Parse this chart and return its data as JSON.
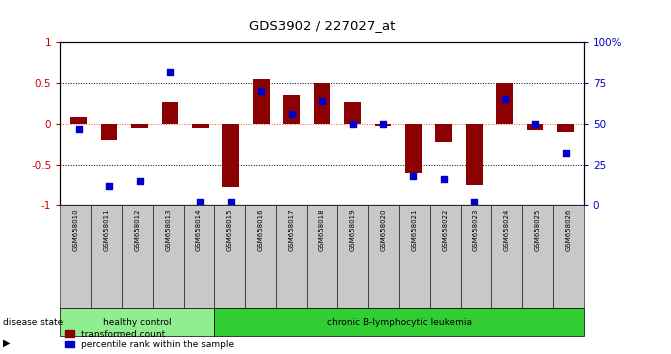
{
  "title": "GDS3902 / 227027_at",
  "samples": [
    "GSM658010",
    "GSM658011",
    "GSM658012",
    "GSM658013",
    "GSM658014",
    "GSM658015",
    "GSM658016",
    "GSM658017",
    "GSM658018",
    "GSM658019",
    "GSM658020",
    "GSM658021",
    "GSM658022",
    "GSM658023",
    "GSM658024",
    "GSM658025",
    "GSM658026"
  ],
  "red_values": [
    0.08,
    -0.2,
    -0.05,
    0.27,
    -0.05,
    -0.78,
    0.55,
    0.35,
    0.5,
    0.27,
    -0.02,
    -0.6,
    -0.22,
    -0.75,
    0.5,
    -0.07,
    -0.1
  ],
  "blue_pct": [
    47,
    12,
    15,
    82,
    2,
    2,
    70,
    56,
    64,
    50,
    50,
    18,
    16,
    2,
    65,
    50,
    32
  ],
  "healthy_count": 5,
  "healthy_label": "healthy control",
  "disease_label": "chronic B-lymphocytic leukemia",
  "disease_state_label": "disease state",
  "legend_red": "transformed count",
  "legend_blue": "percentile rank within the sample",
  "bar_color": "#8B0000",
  "dot_color": "#0000CC",
  "healthy_bg": "#90EE90",
  "disease_bg": "#32CD32",
  "sample_bg": "#C8C8C8",
  "ylim_left": [
    -1,
    1
  ],
  "ylim_right": [
    0,
    100
  ],
  "yticks_left": [
    -1,
    -0.5,
    0,
    0.5,
    1
  ],
  "ytick_labels_left": [
    "-1",
    "-0.5",
    "0",
    "0.5",
    "1"
  ],
  "yticks_right": [
    0,
    25,
    50,
    75,
    100
  ],
  "ytick_labels_right": [
    "0",
    "25",
    "50",
    "75",
    "100%"
  ],
  "bg_color": "#FFFFFF"
}
